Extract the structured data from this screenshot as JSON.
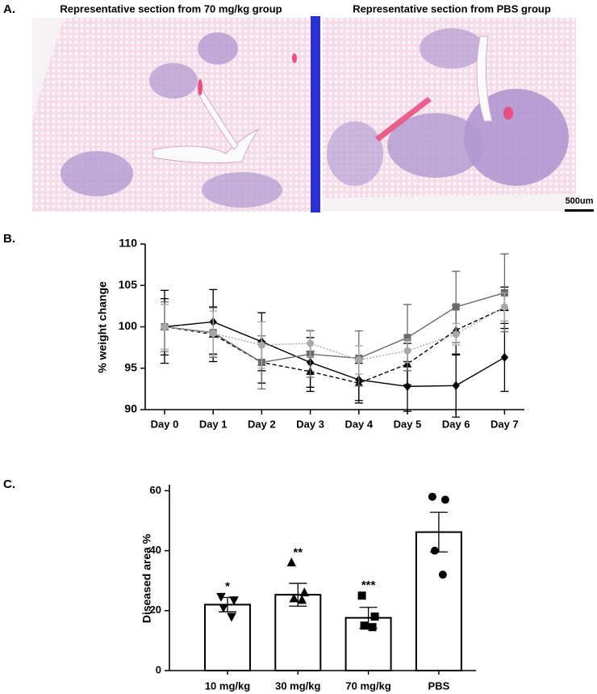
{
  "figure": {
    "panel_a": {
      "label": "A.",
      "left_title": "Representative section from 70 mg/kg group",
      "right_title": "Representative section from PBS group",
      "scale_bar": "500um"
    }
  },
  "chart_data": [
    {
      "type": "line",
      "panel_label": "B.",
      "y_label": "% weight change",
      "categories": [
        "Day 0",
        "Day 1",
        "Day 2",
        "Day 3",
        "Day 4",
        "Day 5",
        "Day 6",
        "Day 7"
      ],
      "ylim": [
        90,
        110
      ],
      "yticks": [
        90,
        95,
        100,
        105,
        110
      ],
      "series": [
        {
          "color": "#000000",
          "marker": "diamond",
          "line_style": "solid",
          "values": [
            100,
            100.6,
            98.2,
            95.7,
            93.6,
            92.8,
            92.9,
            96.3
          ],
          "errors": [
            4.4,
            3.9,
            3.5,
            3.0,
            2.5,
            3.0,
            3.8,
            4.1
          ]
        },
        {
          "color": "#000000",
          "marker": "triangle",
          "line_style": "dashed",
          "values": [
            100,
            99.1,
            95.7,
            94.6,
            93.2,
            95.5,
            99.6,
            102.3
          ],
          "errors": [
            3.4,
            3.3,
            2.5,
            2.4,
            2.4,
            2.5,
            3.0,
            2.5
          ]
        },
        {
          "color": "#6b6b6b",
          "marker": "square",
          "line_style": "solid",
          "values": [
            100,
            99.3,
            95.7,
            96.7,
            96.2,
            98.7,
            102.4,
            104.1
          ],
          "errors": [
            3.0,
            3.0,
            3.2,
            2.8,
            3.3,
            4.0,
            4.3,
            4.7
          ]
        },
        {
          "color": "#a8a8a8",
          "marker": "circle",
          "line_style": "dotted",
          "values": [
            100,
            99.2,
            97.8,
            98.0,
            96.0,
            97.1,
            99.1,
            102.4
          ],
          "errors": [
            2.7,
            2.7,
            2.8,
            1.6,
            1.7,
            1.4,
            1.3,
            1.7
          ]
        }
      ]
    },
    {
      "type": "bar",
      "panel_label": "C.",
      "y_label": "Diseased area %",
      "categories": [
        "10 mg/kg",
        "30 mg/kg",
        "70 mg/kg",
        "PBS"
      ],
      "values": [
        22,
        25.3,
        17.6,
        46.2
      ],
      "errors": [
        2.4,
        3.8,
        3.5,
        6.6
      ],
      "points": [
        [
          24.7,
          23.5,
          21,
          18
        ],
        [
          36,
          26,
          24,
          23.5
        ],
        [
          25,
          18,
          15,
          14.5
        ],
        [
          58,
          57,
          40,
          32
        ]
      ],
      "markers": [
        "triangle-down",
        "triangle",
        "square",
        "circle"
      ],
      "significance": [
        "*",
        "**",
        "***",
        null
      ],
      "color": "#ffffff",
      "ylim": [
        0,
        62
      ],
      "yticks": [
        0,
        20,
        40,
        60
      ]
    }
  ]
}
